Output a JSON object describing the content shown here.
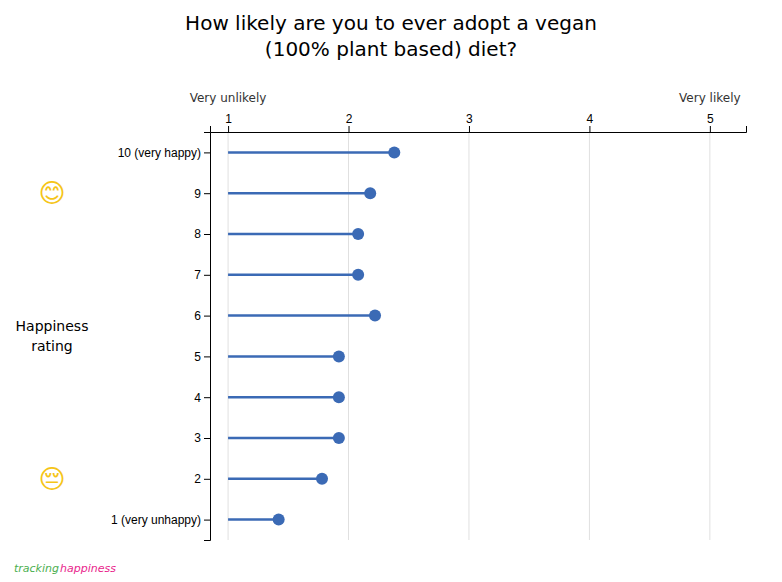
{
  "chart_data": {
    "type": "lollipop",
    "orientation": "horizontal",
    "title": "How likely are you to ever adopt a vegan\n(100% plant based) diet?",
    "ylabel": "Happiness\nrating",
    "categories": [
      "10 (very happy)",
      "9",
      "8",
      "7",
      "6",
      "5",
      "4",
      "3",
      "2",
      "1 (very unhappy)"
    ],
    "values": [
      2.38,
      2.18,
      2.08,
      2.08,
      2.22,
      1.92,
      1.92,
      1.92,
      1.78,
      1.42
    ],
    "baseline": 1,
    "color": "#3B6AB5",
    "xlim": [
      0.85,
      5.3
    ],
    "xticks": [
      1,
      2,
      3,
      4,
      5
    ],
    "grid": true,
    "annotations": [
      {
        "text": "Very unlikely",
        "x": 1
      },
      {
        "text": "Very likely",
        "x": 5
      },
      {
        "text": "😊",
        "category": "9"
      },
      {
        "text": "😔",
        "category": "2"
      },
      {
        "text": "tracking",
        "color": "#4CAF50"
      },
      {
        "text": "happiness",
        "color": "#E91E8C"
      }
    ]
  }
}
